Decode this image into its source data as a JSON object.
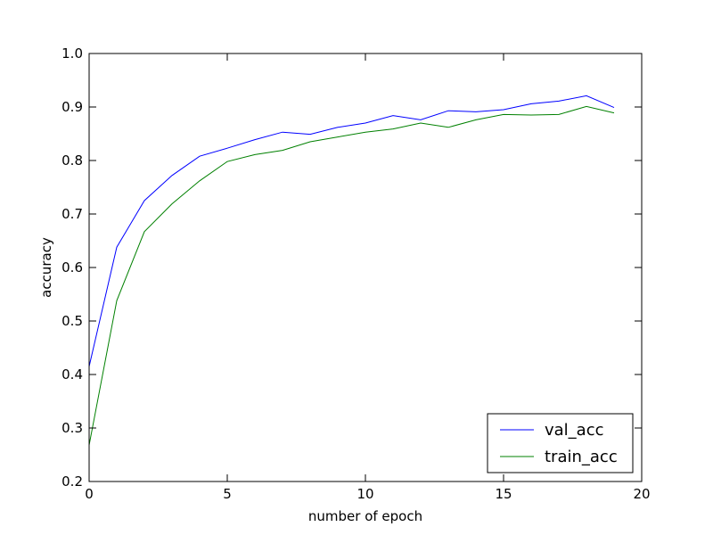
{
  "chart_data": {
    "type": "line",
    "xlabel": "number of epoch",
    "ylabel": "accuracy",
    "xlim": [
      0,
      20
    ],
    "ylim": [
      0.2,
      1.0
    ],
    "xticks": [
      0,
      5,
      10,
      15,
      20
    ],
    "xtick_labels": [
      "0",
      "5",
      "10",
      "15",
      "20"
    ],
    "yticks": [
      0.2,
      0.3,
      0.4,
      0.5,
      0.6,
      0.7,
      0.8,
      0.9,
      1.0
    ],
    "ytick_labels": [
      "0.2",
      "0.3",
      "0.4",
      "0.5",
      "0.6",
      "0.7",
      "0.8",
      "0.9",
      "1.0"
    ],
    "grid": false,
    "legend_position": "bottom-right",
    "x": [
      0,
      1,
      2,
      3,
      4,
      5,
      6,
      7,
      8,
      9,
      10,
      11,
      12,
      13,
      14,
      15,
      16,
      17,
      18,
      19
    ],
    "series": [
      {
        "name": "val_acc",
        "color": "#0000ff",
        "values": [
          0.415,
          0.638,
          0.725,
          0.772,
          0.808,
          0.823,
          0.839,
          0.853,
          0.849,
          0.862,
          0.87,
          0.884,
          0.876,
          0.893,
          0.891,
          0.895,
          0.906,
          0.911,
          0.921,
          0.899
        ]
      },
      {
        "name": "train_acc",
        "color": "#008000",
        "values": [
          0.268,
          0.538,
          0.667,
          0.719,
          0.762,
          0.798,
          0.811,
          0.819,
          0.835,
          0.844,
          0.853,
          0.859,
          0.87,
          0.862,
          0.876,
          0.886,
          0.885,
          0.886,
          0.901,
          0.889
        ]
      }
    ]
  }
}
